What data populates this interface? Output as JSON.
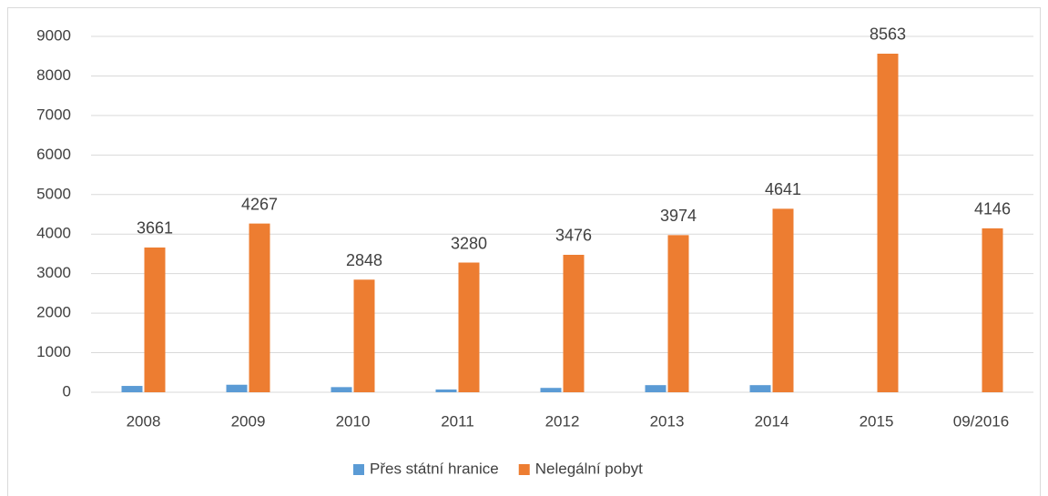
{
  "chart_data": {
    "type": "bar",
    "categories": [
      "2008",
      "2009",
      "2010",
      "2011",
      "2012",
      "2013",
      "2014",
      "2015",
      "09/2016"
    ],
    "series": [
      {
        "name": "Přes státní hranice",
        "color": "#5b9bd5",
        "values": [
          160,
          190,
          130,
          70,
          110,
          180,
          180,
          null,
          null
        ],
        "show_labels": false
      },
      {
        "name": "Nelegální pobyt",
        "color": "#ed7d31",
        "values": [
          3661,
          4267,
          2848,
          3280,
          3476,
          3974,
          4641,
          8563,
          4146
        ],
        "show_labels": true
      }
    ],
    "ylim": [
      0,
      9000
    ],
    "yticks": [
      0,
      1000,
      2000,
      3000,
      4000,
      5000,
      6000,
      7000,
      8000,
      9000
    ],
    "grid": true,
    "legend": "bottom"
  }
}
